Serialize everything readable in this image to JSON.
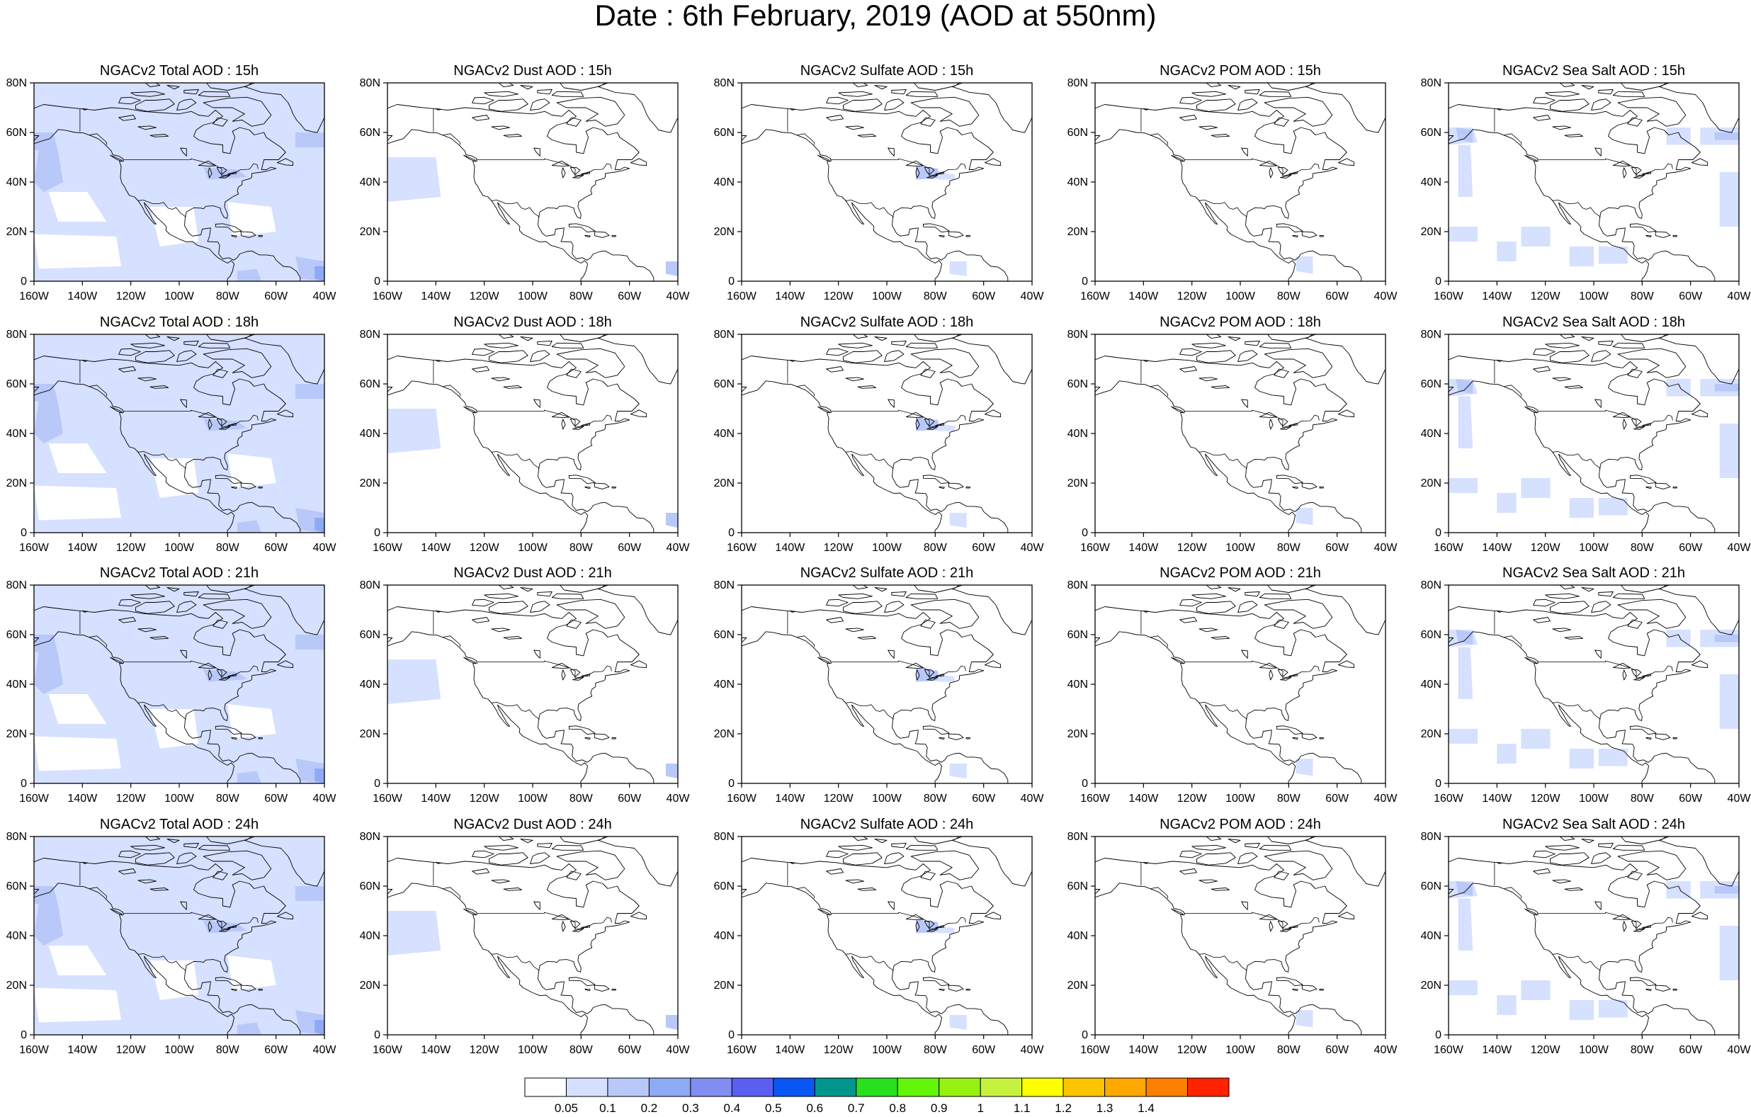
{
  "title": "Date : 6th February, 2019 (AOD at 550nm)",
  "colors": {
    "light_blue": "#d6e0ff",
    "blue2": "#b8c8f8",
    "blue3": "#8ea9f5",
    "coastline": "#000000"
  },
  "axes": {
    "lon_ticks": [
      "160W",
      "140W",
      "120W",
      "100W",
      "80W",
      "60W",
      "40W"
    ],
    "lat_ticks": [
      "80N",
      "60N",
      "40N",
      "20N",
      "0"
    ]
  },
  "rows": [
    {
      "hour": "15h",
      "panels": [
        {
          "title": "NGACv2 Total AOD : 15h",
          "species": "total"
        },
        {
          "title": "NGACv2 Dust AOD : 15h",
          "species": "dust"
        },
        {
          "title": "NGACv2 Sulfate AOD : 15h",
          "species": "sulfate"
        },
        {
          "title": "NGACv2 POM AOD : 15h",
          "species": "pom"
        },
        {
          "title": "NGACv2 Sea Salt AOD : 15h",
          "species": "seasalt"
        }
      ]
    },
    {
      "hour": "18h",
      "panels": [
        {
          "title": "NGACv2 Total AOD : 18h",
          "species": "total"
        },
        {
          "title": "NGACv2 Dust AOD : 18h",
          "species": "dust"
        },
        {
          "title": "NGACv2 Sulfate AOD : 18h",
          "species": "sulfate"
        },
        {
          "title": "NGACv2 POM AOD : 18h",
          "species": "pom"
        },
        {
          "title": "NGACv2 Sea Salt AOD : 18h",
          "species": "seasalt"
        }
      ]
    },
    {
      "hour": "21h",
      "panels": [
        {
          "title": "NGACv2 Total AOD : 21h",
          "species": "total"
        },
        {
          "title": "NGACv2 Dust AOD : 21h",
          "species": "dust"
        },
        {
          "title": "NGACv2 Sulfate AOD : 21h",
          "species": "sulfate"
        },
        {
          "title": "NGACv2 POM AOD : 21h",
          "species": "pom"
        },
        {
          "title": "NGACv2 Sea Salt AOD : 21h",
          "species": "seasalt"
        }
      ]
    },
    {
      "hour": "24h",
      "panels": [
        {
          "title": "NGACv2 Total AOD : 24h",
          "species": "total"
        },
        {
          "title": "NGACv2 Dust AOD : 24h",
          "species": "dust"
        },
        {
          "title": "NGACv2 Sulfate AOD : 24h",
          "species": "sulfate"
        },
        {
          "title": "NGACv2 POM AOD : 24h",
          "species": "pom"
        },
        {
          "title": "NGACv2 Sea Salt  AOD : 24h",
          "species": "seasalt"
        }
      ]
    }
  ],
  "colorbar": {
    "colors": [
      "#ffffff",
      "#d6e0ff",
      "#b8c8f8",
      "#8ea9f5",
      "#7f8ef0",
      "#5a5ff0",
      "#0a56f5",
      "#00968e",
      "#27e01e",
      "#62f70a",
      "#97f20f",
      "#c6f23e",
      "#ffff00",
      "#ffc400",
      "#ffa800",
      "#ff7f00",
      "#ff2300"
    ],
    "labels": [
      "0.05",
      "0.1",
      "0.2",
      "0.3",
      "0.4",
      "0.5",
      "0.6",
      "0.7",
      "0.8",
      "0.9",
      "1",
      "1.1",
      "1.2",
      "1.3",
      "1.4"
    ]
  }
}
